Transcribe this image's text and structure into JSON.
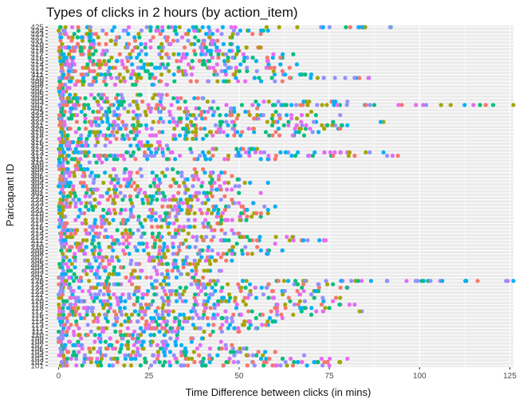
{
  "chart_data": {
    "type": "scatter",
    "title": "Types of clicks in 2 hours (by action_item)",
    "xlabel": "Time Difference between clicks (in mins)",
    "ylabel": "Paricapant ID",
    "xlim": [
      -3,
      126
    ],
    "x_ticks": [
      0,
      25,
      50,
      75,
      100,
      125
    ],
    "grid": true,
    "legend": "none",
    "participants": [
      "101",
      "102",
      "103",
      "104",
      "105",
      "106",
      "107",
      "108",
      "109",
      "110",
      "111",
      "112",
      "113",
      "114",
      "115",
      "116",
      "117",
      "118",
      "119",
      "120",
      "121",
      "122",
      "123",
      "124",
      "125",
      "126",
      "201",
      "202",
      "203",
      "204",
      "205",
      "206",
      "207",
      "208",
      "209",
      "210",
      "211",
      "212",
      "213",
      "214",
      "215",
      "216",
      "217",
      "218",
      "219",
      "220",
      "221",
      "222",
      "223",
      "224",
      "225",
      "301",
      "302",
      "303",
      "304",
      "305",
      "306",
      "307",
      "308",
      "309",
      "310",
      "311",
      "312",
      "313",
      "314",
      "315",
      "316",
      "317",
      "318",
      "319",
      "320",
      "321",
      "322",
      "323",
      "324",
      "325",
      "401",
      "402",
      "403",
      "404",
      "405",
      "406",
      "407",
      "408",
      "409",
      "410",
      "411",
      "412",
      "413",
      "414",
      "415",
      "416",
      "417",
      "418",
      "419",
      "420",
      "421",
      "422",
      "423",
      "424",
      "425"
    ],
    "y_ticks": [
      "101",
      "102",
      "103",
      "104",
      "105",
      "106",
      "107",
      "108",
      "109",
      "110",
      "111",
      "112",
      "113",
      "114",
      "115",
      "116",
      "117",
      "118",
      "119",
      "120",
      "121",
      "122",
      "123",
      "124",
      "125",
      "126",
      "201",
      "202",
      "203",
      "204",
      "205",
      "206",
      "207",
      "208",
      "209",
      "210",
      "211",
      "212",
      "213",
      "214",
      "215",
      "216",
      "217",
      "218",
      "219",
      "220",
      "221",
      "222",
      "223",
      "224",
      "225",
      "301",
      "302",
      "303",
      "304",
      "305",
      "306",
      "307",
      "308",
      "309",
      "310",
      "311",
      "312",
      "313",
      "314",
      "315",
      "316",
      "317",
      "318",
      "319",
      "320",
      "321",
      "322",
      "323",
      "324",
      "325",
      "401",
      "402",
      "403",
      "404",
      "405",
      "406",
      "407",
      "408",
      "409",
      "410",
      "411",
      "412",
      "413",
      "414",
      "415",
      "416",
      "417",
      "418",
      "419",
      "420",
      "421",
      "422",
      "423",
      "424",
      "425"
    ],
    "colors": [
      "#F8766D",
      "#A3A500",
      "#00BF7D",
      "#00B0F6",
      "#E76BF3",
      "#9590FF"
    ],
    "seed": 20240531,
    "max_x": {
      "101": 75,
      "102": 78,
      "103": 80,
      "104": 68,
      "105": 60,
      "106": 52,
      "107": 48,
      "108": 45,
      "109": 40,
      "110": 42,
      "111": 50,
      "112": 55,
      "113": 58,
      "114": 60,
      "115": 62,
      "116": 70,
      "117": 84,
      "118": 75,
      "119": 82,
      "120": 76,
      "121": 78,
      "122": 70,
      "123": 72,
      "124": 80,
      "125": 76,
      "126": 126,
      "201": 40,
      "202": 38,
      "203": 45,
      "204": 38,
      "205": 42,
      "206": 48,
      "207": 45,
      "208": 58,
      "209": 62,
      "210": 55,
      "211": 60,
      "212": 74,
      "213": 65,
      "214": 50,
      "215": 48,
      "216": 42,
      "217": 45,
      "218": 52,
      "219": 56,
      "220": 58,
      "221": 58,
      "222": 60,
      "223": 54,
      "224": 48,
      "225": 46,
      "301": 56,
      "302": 48,
      "303": 50,
      "304": 58,
      "305": 50,
      "306": 48,
      "307": 46,
      "308": 40,
      "309": 6,
      "310": 12,
      "311": 60,
      "312": 94,
      "313": 90,
      "314": 55,
      "315": 30,
      "316": 28,
      "317": 40,
      "318": 68,
      "319": 72,
      "320": 78,
      "321": 80,
      "322": 90,
      "323": 66,
      "324": 78,
      "325": 70,
      "401": 55,
      "402": 126,
      "403": 80,
      "404": 40,
      "405": 30,
      "406": 2,
      "407": 3,
      "408": 30,
      "409": 62,
      "410": 86,
      "411": 70,
      "412": 62,
      "413": 64,
      "414": 66,
      "415": 58,
      "416": 62,
      "417": 65,
      "418": 50,
      "419": 56,
      "420": 48,
      "421": 44,
      "422": 48,
      "423": 56,
      "424": 58,
      "425": 92
    }
  }
}
